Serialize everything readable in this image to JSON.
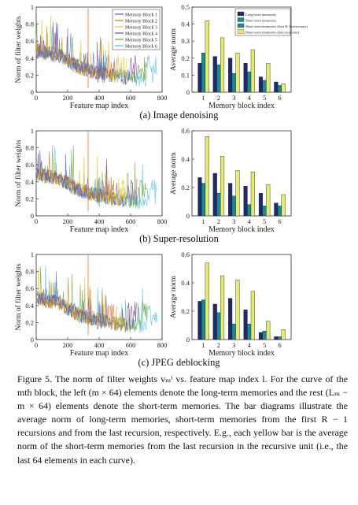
{
  "colors": {
    "blocks": [
      "#4169c8",
      "#d4762a",
      "#e8c32f",
      "#7a3e9c",
      "#6fa83b",
      "#57c0df"
    ],
    "long_term": "#1f2a6e",
    "short_first": "#1b8a8a",
    "short_last": "#e4ea72"
  },
  "subcaptions": [
    "(a) Image denoising",
    "(b) Super-resolution",
    "(c) JPEG deblocking"
  ],
  "caption": {
    "paragraph": "Figure 5. The norm of filter weights vₘˡ vs. feature map index l. For the curve of the mth block, the left (m × 64) elements denote the long-term memories and the rest (Lₘ − m × 64) elements denote the short-term memories. The bar diagrams illustrate the average norm of long-term memories, short-term memories from the first R − 1 recursions and from the last recursion, respectively. E.g., each yellow bar is the average norm of the short-term memories from the last recursion in the recursive unit (i.e., the last 64 elements in each curve)."
  },
  "chart_data": [
    {
      "type": "line",
      "panel": "a",
      "xlabel": "Feature map index",
      "ylabel": "Norm of filter weights",
      "xlim": [
        0,
        800
      ],
      "ylim": [
        0,
        1
      ],
      "xticks": [
        "0",
        "200",
        "400",
        "600",
        "800"
      ],
      "yticks": [
        "0",
        "0.2",
        "0.4",
        "0.6",
        "0.8",
        "1"
      ],
      "legend": [
        "Memory Block 1",
        "Memory Block 2",
        "Memory Block 3",
        "Memory Block 4",
        "Memory Block 5",
        "Memory Block 6"
      ],
      "legend_position": "top-right",
      "series_extent": [
        448,
        512,
        576,
        640,
        704,
        768
      ]
    },
    {
      "type": "bar",
      "panel": "a",
      "xlabel": "Memory block index",
      "ylabel": "Average norm",
      "categories": [
        "1",
        "2",
        "3",
        "4",
        "5",
        "6"
      ],
      "ylim": [
        0,
        0.5
      ],
      "yticks": [
        "0",
        "0.1",
        "0.2",
        "0.3",
        "0.4",
        "0.5"
      ],
      "legend": [
        "Long-term memories",
        "Short-term memories",
        "Short-term memories (first R-1 recursions)",
        "Short-term memories (last recursion)"
      ],
      "legend_position": "top-right",
      "series": [
        {
          "values": [
            0.17,
            0.21,
            0.2,
            0.17,
            0.09,
            0.06
          ]
        },
        {
          "values": [
            0.23,
            0.16,
            0.11,
            0.12,
            0.07,
            0.04
          ]
        },
        {
          "values": [
            0.42,
            0.32,
            0.23,
            0.25,
            0.17,
            0.05
          ]
        }
      ]
    },
    {
      "type": "line",
      "panel": "b",
      "xlabel": "Feature map index",
      "ylabel": "Norm of filter weights",
      "xlim": [
        0,
        800
      ],
      "ylim": [
        0,
        1
      ],
      "xticks": [
        "0",
        "200",
        "400",
        "600",
        "800"
      ],
      "yticks": [
        "0",
        "0.2",
        "0.4",
        "0.6",
        "0.8",
        "1"
      ],
      "series_extent": [
        448,
        512,
        576,
        640,
        704,
        768
      ]
    },
    {
      "type": "bar",
      "panel": "b",
      "xlabel": "Memory block index",
      "ylabel": "Average norm",
      "categories": [
        "1",
        "2",
        "3",
        "4",
        "5",
        "6"
      ],
      "ylim": [
        0,
        0.6
      ],
      "yticks": [
        "0",
        "0.2",
        "0.4",
        "0.6"
      ],
      "series": [
        {
          "values": [
            0.27,
            0.3,
            0.23,
            0.21,
            0.16,
            0.09
          ]
        },
        {
          "values": [
            0.23,
            0.16,
            0.14,
            0.08,
            0.07,
            0.07
          ]
        },
        {
          "values": [
            0.56,
            0.42,
            0.32,
            0.31,
            0.22,
            0.15
          ]
        }
      ]
    },
    {
      "type": "line",
      "panel": "c",
      "xlabel": "Feature map index",
      "ylabel": "Norm of filter weights",
      "xlim": [
        0,
        800
      ],
      "ylim": [
        0,
        1
      ],
      "xticks": [
        "0",
        "200",
        "400",
        "600",
        "800"
      ],
      "yticks": [
        "0",
        "0.2",
        "0.4",
        "0.6",
        "0.8",
        "1"
      ],
      "series_extent": [
        448,
        512,
        576,
        640,
        704,
        768
      ]
    },
    {
      "type": "bar",
      "panel": "c",
      "xlabel": "Memory block index",
      "ylabel": "Average norm",
      "categories": [
        "1",
        "2",
        "3",
        "4",
        "5",
        "6"
      ],
      "ylim": [
        0,
        0.6
      ],
      "yticks": [
        "0",
        "0.2",
        "0.4",
        "0.6"
      ],
      "series": [
        {
          "values": [
            0.27,
            0.25,
            0.29,
            0.21,
            0.05,
            0.02
          ]
        },
        {
          "values": [
            0.28,
            0.19,
            0.11,
            0.11,
            0.06,
            0.02
          ]
        },
        {
          "values": [
            0.54,
            0.45,
            0.42,
            0.34,
            0.13,
            0.07
          ]
        }
      ]
    }
  ]
}
